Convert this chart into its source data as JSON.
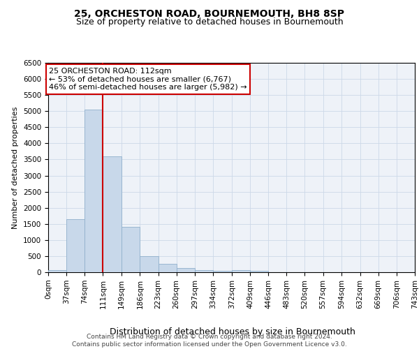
{
  "title": "25, ORCHESTON ROAD, BOURNEMOUTH, BH8 8SP",
  "subtitle": "Size of property relative to detached houses in Bournemouth",
  "xlabel": "Distribution of detached houses by size in Bournemouth",
  "ylabel": "Number of detached properties",
  "bin_edges": [
    0,
    37,
    74,
    111,
    149,
    186,
    223,
    260,
    297,
    334,
    372,
    409,
    446,
    483,
    520,
    557,
    594,
    632,
    669,
    706,
    743
  ],
  "bar_heights": [
    75,
    1650,
    5050,
    3600,
    1400,
    500,
    260,
    130,
    75,
    50,
    75,
    50,
    10,
    5,
    5,
    5,
    0,
    0,
    0,
    0
  ],
  "bar_color": "#c8d8ea",
  "bar_edgecolor": "#90b0cc",
  "property_line_x": 111,
  "property_line_color": "#cc0000",
  "ylim": [
    0,
    6500
  ],
  "yticks": [
    0,
    500,
    1000,
    1500,
    2000,
    2500,
    3000,
    3500,
    4000,
    4500,
    5000,
    5500,
    6000,
    6500
  ],
  "annotation_text": "25 ORCHESTON ROAD: 112sqm\n← 53% of detached houses are smaller (6,767)\n46% of semi-detached houses are larger (5,982) →",
  "annotation_color": "#cc0000",
  "grid_color": "#ccd8e8",
  "bg_color": "#eef2f8",
  "footer": "Contains HM Land Registry data © Crown copyright and database right 2024.\nContains public sector information licensed under the Open Government Licence v3.0.",
  "title_fontsize": 10,
  "subtitle_fontsize": 9,
  "xlabel_fontsize": 9,
  "ylabel_fontsize": 8,
  "tick_fontsize": 7.5,
  "annotation_fontsize": 8,
  "footer_fontsize": 6.5
}
